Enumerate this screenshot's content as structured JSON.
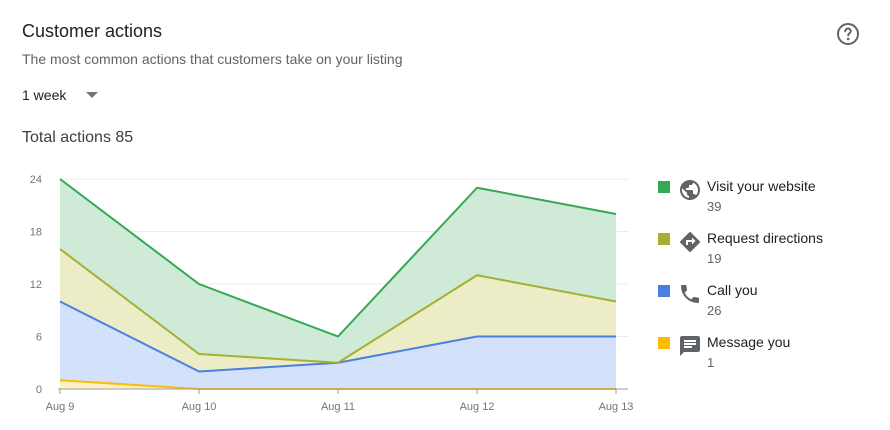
{
  "header": {
    "title": "Customer actions",
    "subtitle": "The most common actions that customers take on your listing",
    "help_icon": "help-circle-icon"
  },
  "period": {
    "selected": "1 week"
  },
  "total": {
    "text": "Total actions 85"
  },
  "chart_data": {
    "type": "area",
    "stacked": true,
    "categories": [
      "Aug 9",
      "Aug 10",
      "Aug 11",
      "Aug 12",
      "Aug 13"
    ],
    "ylim": [
      0,
      24
    ],
    "yticks": [
      0,
      6,
      12,
      18,
      24
    ],
    "grid": true,
    "legend_position": "right",
    "series": [
      {
        "name": "Message you",
        "values": [
          1,
          0,
          0,
          0,
          0
        ],
        "color": "#fbbc04",
        "fill": "#fdf0c4"
      },
      {
        "name": "Call you",
        "values": [
          9,
          2,
          3,
          6,
          6
        ],
        "color": "#4a80e0",
        "fill": "#d3e1fb"
      },
      {
        "name": "Request directions",
        "values": [
          6,
          2,
          0,
          7,
          4
        ],
        "color": "#a4b032",
        "fill": "#ecedc6"
      },
      {
        "name": "Visit your website",
        "values": [
          8,
          8,
          3,
          10,
          10
        ],
        "color": "#34a853",
        "fill": "#cfead6"
      }
    ]
  },
  "legend": [
    {
      "label": "Visit your website",
      "value": "39",
      "color": "#34a853",
      "icon": "globe-icon"
    },
    {
      "label": "Request directions",
      "value": "19",
      "color": "#a4b032",
      "icon": "directions-icon"
    },
    {
      "label": "Call you",
      "value": "26",
      "color": "#4a80e0",
      "icon": "phone-icon"
    },
    {
      "label": "Message you",
      "value": "1",
      "color": "#fbbc04",
      "icon": "message-icon"
    }
  ]
}
